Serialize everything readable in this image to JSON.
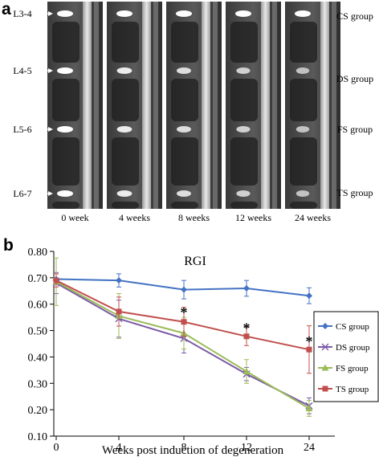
{
  "panel_a": {
    "letter": "a",
    "level_labels": [
      "L3-4",
      "L4-5",
      "L5-6",
      "L6-7"
    ],
    "group_labels": [
      "CS group",
      "DS group",
      "FS group",
      "TS group"
    ],
    "timepoint_labels": [
      "0 week",
      "4 weeks",
      "8 weeks",
      "12 weeks",
      "24 weeks"
    ]
  },
  "panel_b": {
    "letter": "b"
  },
  "chart_data": {
    "type": "line",
    "title": "RGI",
    "xlabel": "Weeks post induction of degeneration",
    "ylabel": "",
    "x": [
      0,
      4,
      8,
      12,
      24
    ],
    "x_tick_labels": [
      "0",
      "4",
      "8",
      "12",
      "24"
    ],
    "ylim": [
      0.1,
      0.8
    ],
    "y_ticks": [
      "0.10",
      "0.20",
      "0.30",
      "0.40",
      "0.50",
      "0.60",
      "0.70",
      "0.80"
    ],
    "grid": false,
    "legend_position": "right",
    "series": [
      {
        "name": "CS group",
        "color": "#4472c4",
        "marker": "diamond",
        "values": [
          0.695,
          0.69,
          0.655,
          0.66,
          0.632
        ],
        "errors": [
          0.02,
          0.025,
          0.035,
          0.03,
          0.03
        ]
      },
      {
        "name": "DS group",
        "color": "#7b5aa6",
        "marker": "x",
        "values": [
          0.68,
          0.545,
          0.47,
          0.335,
          0.215
        ],
        "errors": [
          0.04,
          0.07,
          0.055,
          0.025,
          0.03
        ]
      },
      {
        "name": "FS group",
        "color": "#9bbb59",
        "marker": "triangle",
        "values": [
          0.685,
          0.555,
          0.49,
          0.345,
          0.205
        ],
        "errors": [
          0.09,
          0.085,
          0.06,
          0.045,
          0.03
        ]
      },
      {
        "name": "TS group",
        "color": "#c0504d",
        "marker": "square",
        "values": [
          0.69,
          0.572,
          0.533,
          0.478,
          0.428
        ],
        "errors": [
          0.025,
          0.055,
          0.055,
          0.035,
          0.09
        ]
      }
    ],
    "annotations": [
      {
        "text": "*",
        "x": 8,
        "y": 0.575
      },
      {
        "text": "*",
        "x": 12,
        "y": 0.515
      },
      {
        "text": "*",
        "x": 24,
        "y": 0.465
      }
    ]
  }
}
